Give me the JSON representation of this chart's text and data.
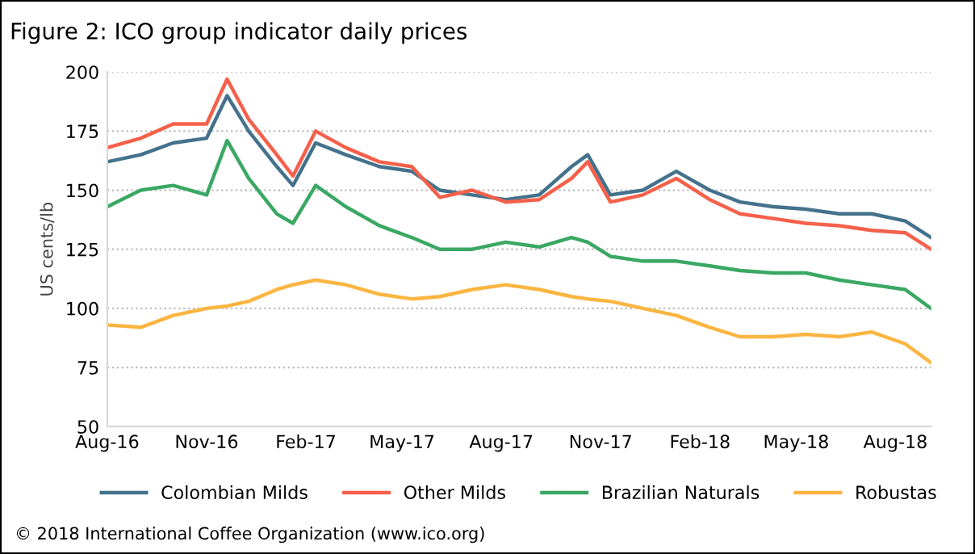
{
  "chart_data": {
    "type": "line",
    "title": "Figure 2: ICO group indicator daily prices",
    "ylabel": "US cents/lb",
    "x": [
      "2016-08-01",
      "2016-09-01",
      "2016-10-01",
      "2016-11-01",
      "2016-11-20",
      "2016-12-10",
      "2017-01-05",
      "2017-01-20",
      "2017-02-10",
      "2017-03-10",
      "2017-04-10",
      "2017-05-10",
      "2017-06-05",
      "2017-07-05",
      "2017-08-05",
      "2017-09-05",
      "2017-10-05",
      "2017-10-20",
      "2017-11-10",
      "2017-12-10",
      "2018-01-10",
      "2018-02-10",
      "2018-03-10",
      "2018-04-10",
      "2018-05-10",
      "2018-06-10",
      "2018-07-10",
      "2018-08-10",
      "2018-09-03"
    ],
    "series": [
      {
        "name": "Colombian Milds",
        "color": "#44728c",
        "values": [
          162,
          165,
          170,
          172,
          190,
          175,
          160,
          152,
          170,
          165,
          160,
          158,
          150,
          148,
          146,
          148,
          160,
          165,
          148,
          150,
          158,
          150,
          145,
          143,
          142,
          140,
          140,
          137,
          130
        ]
      },
      {
        "name": "Other Milds",
        "color": "#f5604a",
        "values": [
          168,
          172,
          178,
          178,
          197,
          180,
          165,
          156,
          175,
          168,
          162,
          160,
          147,
          150,
          145,
          146,
          155,
          162,
          145,
          148,
          155,
          146,
          140,
          138,
          136,
          135,
          133,
          132,
          125
        ]
      },
      {
        "name": "Brazilian Naturals",
        "color": "#3aa863",
        "values": [
          143,
          150,
          152,
          148,
          171,
          155,
          140,
          136,
          152,
          143,
          135,
          130,
          125,
          125,
          128,
          126,
          130,
          128,
          122,
          120,
          120,
          118,
          116,
          115,
          115,
          112,
          110,
          108,
          100
        ]
      },
      {
        "name": "Robustas",
        "color": "#fbb540",
        "values": [
          93,
          92,
          97,
          100,
          101,
          103,
          108,
          110,
          112,
          110,
          106,
          104,
          105,
          108,
          110,
          108,
          105,
          104,
          103,
          100,
          97,
          92,
          88,
          88,
          89,
          88,
          90,
          85,
          77
        ]
      }
    ],
    "xlim": [
      "2016-08-01",
      "2018-09-03"
    ],
    "xticks": [
      {
        "value": "2016-08-01",
        "label": "Aug-16"
      },
      {
        "value": "2016-11-01",
        "label": "Nov-16"
      },
      {
        "value": "2017-02-01",
        "label": "Feb-17"
      },
      {
        "value": "2017-05-01",
        "label": "May-17"
      },
      {
        "value": "2017-08-01",
        "label": "Aug-17"
      },
      {
        "value": "2017-11-01",
        "label": "Nov-17"
      },
      {
        "value": "2018-02-01",
        "label": "Feb-18"
      },
      {
        "value": "2018-05-01",
        "label": "May-18"
      },
      {
        "value": "2018-08-01",
        "label": "Aug-18"
      }
    ],
    "ylim": [
      50,
      200
    ],
    "yticks": [
      50,
      75,
      100,
      125,
      150,
      175,
      200
    ],
    "grid": "y",
    "legend": "bottom",
    "marker": "none",
    "line_style": "solid",
    "annotations": [
      "© 2018 International Coffee Organization (www.ico.org)"
    ]
  }
}
